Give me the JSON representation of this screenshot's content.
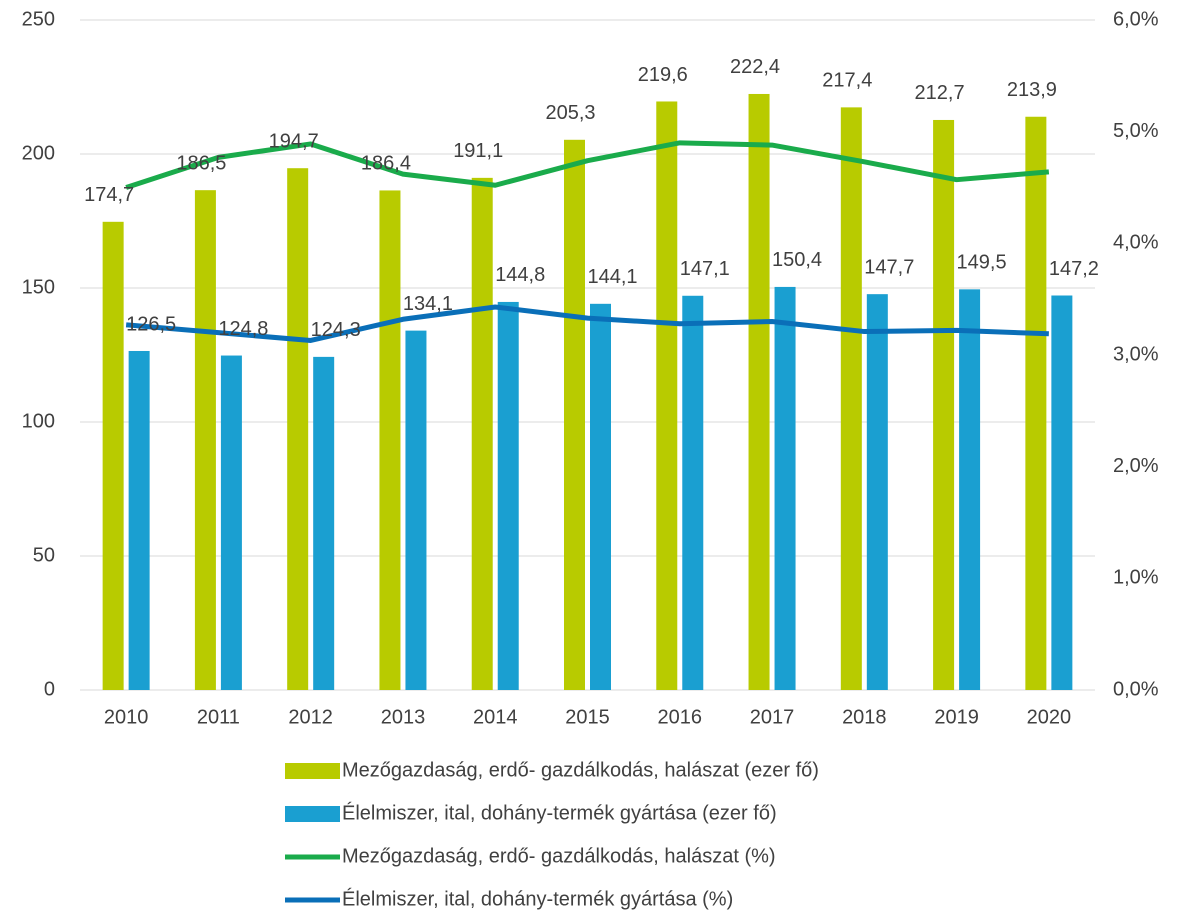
{
  "chart_data": {
    "type": "bar_line",
    "categories": [
      "2010",
      "2011",
      "2012",
      "2013",
      "2014",
      "2015",
      "2016",
      "2017",
      "2018",
      "2019",
      "2020"
    ],
    "series": [
      {
        "name": "Mezőgazdaság, erdő- gazdálkodás, halászat (ezer fő)",
        "kind": "bar",
        "color": "#b8cb00",
        "values": [
          174.7,
          186.5,
          194.7,
          186.4,
          191.1,
          205.3,
          219.6,
          222.4,
          217.4,
          212.7,
          213.9
        ],
        "value_labels": [
          "174,7",
          "186,5",
          "194,7",
          "186,4",
          "191,1",
          "205,3",
          "219,6",
          "222,4",
          "217,4",
          "212,7",
          "213,9"
        ]
      },
      {
        "name": "Élelmiszer, ital, dohány-termék gyártása (ezer fő)",
        "kind": "bar",
        "color": "#1a9fd1",
        "values": [
          126.5,
          124.8,
          124.3,
          134.1,
          144.8,
          144.1,
          147.1,
          150.4,
          147.7,
          149.5,
          147.2
        ],
        "value_labels": [
          "126,5",
          "124,8",
          "124,3",
          "134,1",
          "144,8",
          "144,1",
          "147,1",
          "150,4",
          "147,7",
          "149,5",
          "147,2"
        ]
      },
      {
        "name": "Mezőgazdaság, erdő- gazdálkodás, halászat (%)",
        "kind": "line",
        "axis": "y2",
        "color": "#1aab4b",
        "values": [
          4.5,
          4.77,
          4.89,
          4.62,
          4.52,
          4.74,
          4.9,
          4.88,
          4.73,
          4.57,
          4.64
        ]
      },
      {
        "name": "Élelmiszer, ital, dohány-termék gyártása (%)",
        "kind": "line",
        "axis": "y2",
        "color": "#0a6fb8",
        "values": [
          3.27,
          3.2,
          3.13,
          3.32,
          3.43,
          3.33,
          3.28,
          3.3,
          3.21,
          3.22,
          3.19
        ]
      }
    ],
    "ylim": [
      0,
      250
    ],
    "yticks": [
      0,
      50,
      100,
      150,
      200,
      250
    ],
    "y2lim": [
      0,
      6
    ],
    "y2ticks": [
      {
        "value": 0,
        "label": "0,0%"
      },
      {
        "value": 1,
        "label": "1,0%"
      },
      {
        "value": 2,
        "label": "2,0%"
      },
      {
        "value": 3,
        "label": "3,0%"
      },
      {
        "value": 4,
        "label": "4,0%"
      },
      {
        "value": 5,
        "label": "5,0%"
      },
      {
        "value": 6,
        "label": "6,0%"
      }
    ],
    "grid": true,
    "legend": "bottom"
  }
}
